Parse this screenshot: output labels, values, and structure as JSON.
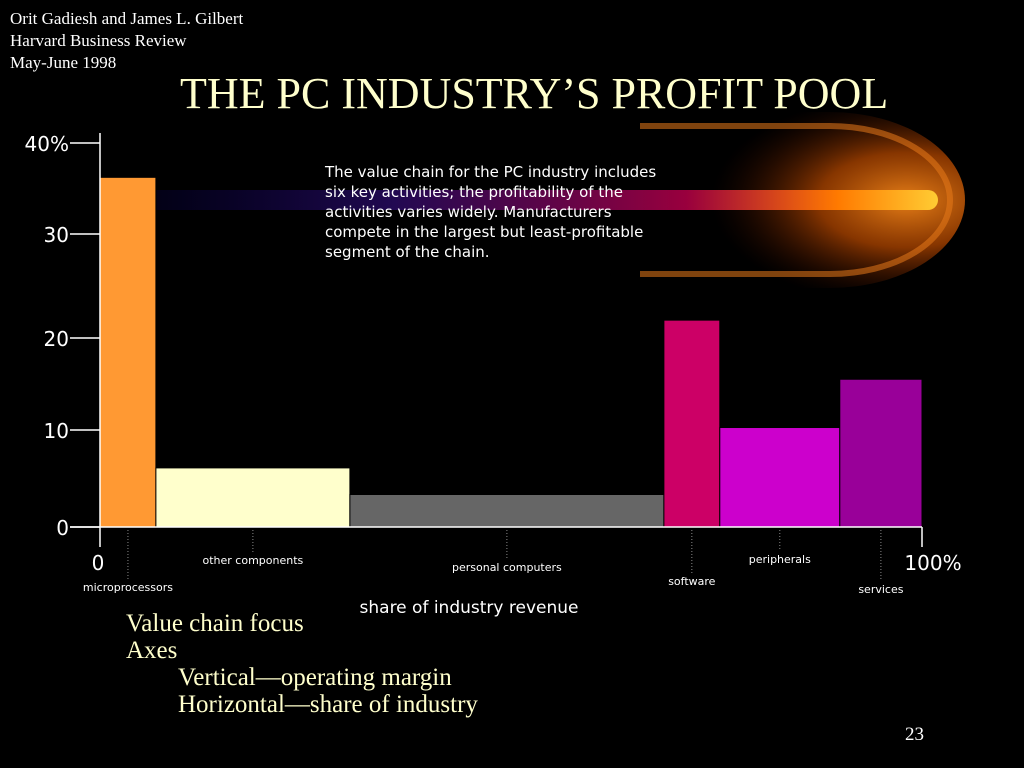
{
  "citation": {
    "authors": "Orit Gadiesh and James L. Gilbert",
    "journal": "Harvard Business Review",
    "date": "May-June 1998"
  },
  "title": "THE PC INDUSTRY’S PROFIT POOL",
  "caption": "The value chain for the PC industry includes six key activities; the profitability of the activities varies widely.  Manufacturers compete in the largest but least-profitable segment of the chain.",
  "chart_data": {
    "type": "bar",
    "variable_width": true,
    "title": "",
    "ylabel": "",
    "xlabel": "share of industry revenue",
    "ylim": [
      0,
      40
    ],
    "xlim": [
      0,
      100
    ],
    "y_ticks": [
      "0",
      "10",
      "20",
      "30",
      "40%"
    ],
    "x_ticks": [
      "0",
      "100%"
    ],
    "grid": false,
    "segments": [
      {
        "name": "microprocessors",
        "share_start": 0,
        "share": 6.8,
        "margin": 35.5,
        "color": "#ff9933"
      },
      {
        "name": "other components",
        "share_start": 6.8,
        "share": 23.6,
        "margin": 6.0,
        "color": "#ffffcc"
      },
      {
        "name": "personal computers",
        "share_start": 30.4,
        "share": 38.2,
        "margin": 3.3,
        "color": "#666666"
      },
      {
        "name": "software",
        "share_start": 68.6,
        "share": 6.8,
        "margin": 21.0,
        "color": "#cc0066"
      },
      {
        "name": "peripherals",
        "share_start": 75.4,
        "share": 14.6,
        "margin": 10.1,
        "color": "#cc00cc"
      },
      {
        "name": "services",
        "share_start": 90.0,
        "share": 10.0,
        "margin": 15.0,
        "color": "#990099"
      }
    ]
  },
  "bullets": [
    {
      "text": "Value chain focus",
      "level": 0
    },
    {
      "text": "Axes",
      "level": 0
    },
    {
      "text": "Vertical—operating margin",
      "level": 1
    },
    {
      "text": "Horizontal—share of industry",
      "level": 1
    }
  ],
  "slide_number": "23"
}
